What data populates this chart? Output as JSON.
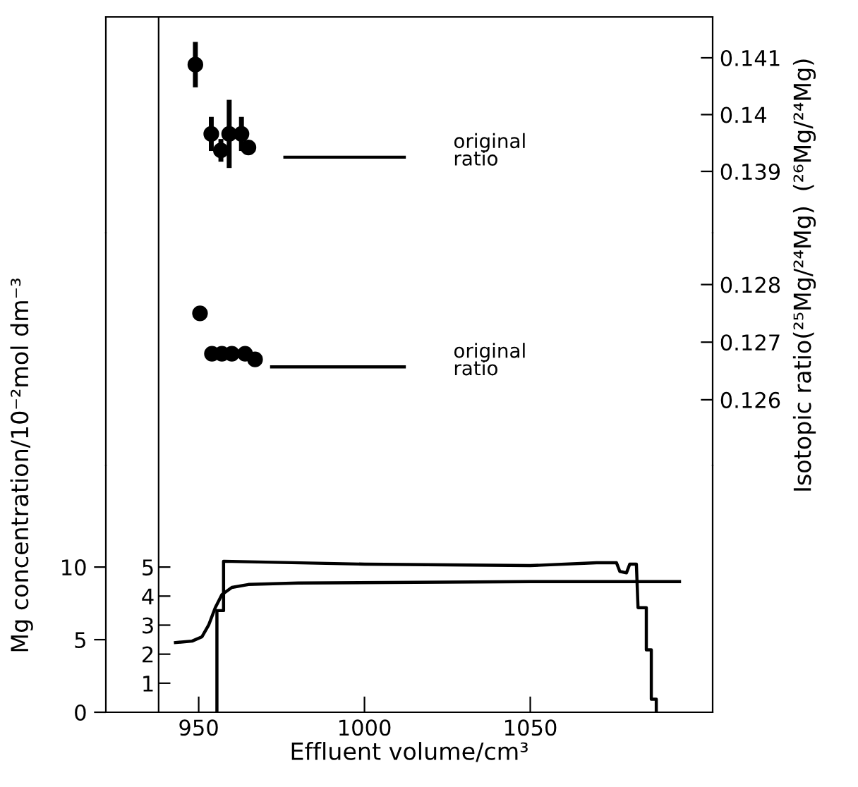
{
  "chart_data": [
    {
      "type": "scatter",
      "xlim": [
        922,
        1105
      ],
      "ylim": [
        0.13792,
        0.14172
      ],
      "yticks": [
        0.139,
        0.14,
        0.141
      ],
      "ylabel": "(²⁶Mg/²⁴Mg)",
      "tick_labels": "y",
      "grid": false,
      "series": [
        {
          "marker": "circle",
          "color": "#000000",
          "x": [
            949,
            953.8,
            956.7,
            959.2,
            962.9,
            965
          ],
          "values": [
            0.14088,
            0.13966,
            0.13937,
            0.13966,
            0.13966,
            0.13942
          ],
          "errors": [
            0.0004,
            0.0003,
            0.0002,
            0.0006,
            0.0003,
            null
          ]
        },
        {
          "type": "line",
          "marker": "none",
          "color": "#000000",
          "x": [
            976,
            1012
          ],
          "values": [
            0.13925,
            0.13925
          ]
        }
      ],
      "annotations": [
        "original\nratio"
      ]
    },
    {
      "type": "scatter",
      "xlim": [
        922,
        1105
      ],
      "ylim": [
        0.12486,
        0.1289
      ],
      "yticks": [
        0.126,
        0.127,
        0.128
      ],
      "ylabel": "Isotopic ratio(²⁵Mg/²⁴Mg)",
      "tick_labels": "y",
      "grid": false,
      "series": [
        {
          "marker": "circle",
          "color": "#000000",
          "x": [
            950.4,
            954,
            957,
            960,
            964,
            967
          ],
          "values": [
            0.1275,
            0.1268,
            0.1268,
            0.1268,
            0.1268,
            0.1267
          ]
        },
        {
          "type": "line",
          "marker": "none",
          "color": "#000000",
          "x": [
            972,
            1012
          ],
          "values": [
            0.12657,
            0.12657
          ]
        }
      ],
      "annotations": [
        "original\nratio"
      ]
    },
    {
      "type": "line",
      "xlim": [
        922,
        1105
      ],
      "xticks": [
        950,
        1000,
        1050
      ],
      "xlabel": "Effluent volume/cm³",
      "ylim": [
        0,
        17
      ],
      "yticks": [
        0,
        5,
        10
      ],
      "ylabel": "Mg concentration/10⁻²mol dm⁻³",
      "y2lim": [
        0,
        8.5
      ],
      "y2ticks": [
        1,
        2,
        3,
        4,
        5
      ],
      "marker": "none",
      "line_style": "solid",
      "grid": false,
      "series": [
        {
          "color": "#000000",
          "x": [
            955.5,
            955.5,
            957.5,
            957.5,
            1000,
            1050,
            1070,
            1076,
            1077,
            1079,
            1080,
            1082,
            1082.5,
            1085,
            1085,
            1086.5,
            1086.5,
            1088,
            1088
          ],
          "values": [
            0,
            7,
            7,
            10.4,
            10.2,
            10.1,
            10.3,
            10.3,
            9.7,
            9.6,
            10.2,
            10.2,
            7.2,
            7.2,
            4.3,
            4.3,
            0.9,
            0.9,
            0
          ]
        },
        {
          "axis": "y2",
          "color": "#000000",
          "x": [
            943,
            948,
            951,
            953,
            955,
            957,
            960,
            965,
            980,
            1050,
            1095
          ],
          "values": [
            2.4,
            2.45,
            2.6,
            3.0,
            3.6,
            4.05,
            4.3,
            4.4,
            4.45,
            4.5,
            4.5
          ]
        }
      ]
    }
  ]
}
